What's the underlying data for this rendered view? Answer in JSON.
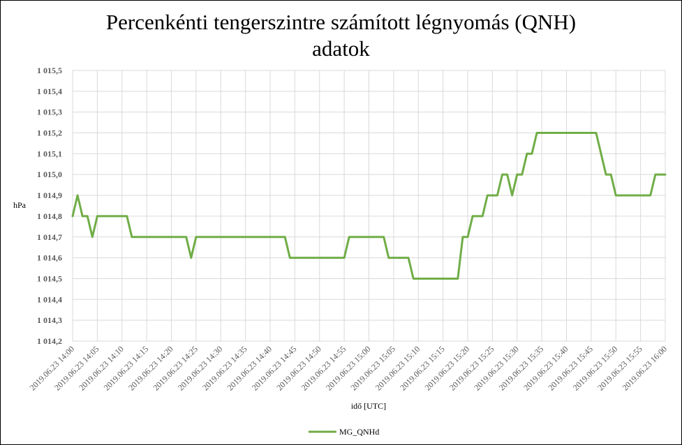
{
  "chart_data": {
    "type": "line",
    "title_lines": [
      "Percenkénti tengerszintre számított légnyomás (QNH)",
      "adatok"
    ],
    "xlabel": "idő [UTC]",
    "ylabel": "hPa",
    "ylim": [
      1014.2,
      1015.5
    ],
    "ystep": 0.1,
    "y_tick_labels": [
      "1 014,2",
      "1 014,3",
      "1 014,4",
      "1 014,5",
      "1 014,6",
      "1 014,7",
      "1 014,8",
      "1 014,9",
      "1 015,0",
      "1 015,1",
      "1 015,2",
      "1 015,3",
      "1 015,4",
      "1 015,5"
    ],
    "x_tick_labels": [
      "2019.06.23 14:00",
      "2019.06.23 14:05",
      "2019.06.23 14:10",
      "2019.06.23 14:15",
      "2019.06.23 14:20",
      "2019.06.23 14:25",
      "2019.06.23 14:30",
      "2019.06.23 14:35",
      "2019.06.23 14:40",
      "2019.06.23 14:45",
      "2019.06.23 14:50",
      "2019.06.23 14:55",
      "2019.06.23 15:00",
      "2019.06.23 15:05",
      "2019.06.23 15:10",
      "2019.06.23 15:15",
      "2019.06.23 15:20",
      "2019.06.23 15:25",
      "2019.06.23 15:30",
      "2019.06.23 15:35",
      "2019.06.23 15:40",
      "2019.06.23 15:45",
      "2019.06.23 15:50",
      "2019.06.23 15:55",
      "2019.06.23 16:00"
    ],
    "x_minutes": [
      0,
      1,
      2,
      3,
      4,
      5,
      6,
      7,
      8,
      9,
      10,
      11,
      12,
      13,
      14,
      15,
      16,
      17,
      18,
      19,
      20,
      21,
      22,
      23,
      24,
      25,
      26,
      27,
      28,
      29,
      30,
      31,
      32,
      33,
      34,
      35,
      36,
      37,
      38,
      39,
      40,
      41,
      42,
      43,
      44,
      45,
      46,
      47,
      48,
      49,
      50,
      51,
      52,
      53,
      54,
      55,
      56,
      57,
      58,
      59,
      60,
      61,
      62,
      63,
      64,
      65,
      66,
      67,
      68,
      69,
      70,
      71,
      72,
      73,
      74,
      75,
      76,
      77,
      78,
      79,
      80,
      81,
      82,
      83,
      84,
      85,
      86,
      87,
      88,
      89,
      90,
      91,
      92,
      93,
      94,
      95,
      96,
      97,
      98,
      99,
      100,
      101,
      102,
      103,
      104,
      105,
      106,
      107,
      108,
      109,
      110,
      111,
      112,
      113,
      114,
      115,
      116,
      117,
      118,
      119,
      120
    ],
    "grid": true,
    "legend_position": "bottom",
    "series": [
      {
        "name": "MG_QNHd",
        "color": "#70AD47",
        "values": [
          1014.8,
          1014.9,
          1014.8,
          1014.8,
          1014.7,
          1014.8,
          1014.8,
          1014.8,
          1014.8,
          1014.8,
          1014.8,
          1014.8,
          1014.7,
          1014.7,
          1014.7,
          1014.7,
          1014.7,
          1014.7,
          1014.7,
          1014.7,
          1014.7,
          1014.7,
          1014.7,
          1014.7,
          1014.6,
          1014.7,
          1014.7,
          1014.7,
          1014.7,
          1014.7,
          1014.7,
          1014.7,
          1014.7,
          1014.7,
          1014.7,
          1014.7,
          1014.7,
          1014.7,
          1014.7,
          1014.7,
          1014.7,
          1014.7,
          1014.7,
          1014.7,
          1014.6,
          1014.6,
          1014.6,
          1014.6,
          1014.6,
          1014.6,
          1014.6,
          1014.6,
          1014.6,
          1014.6,
          1014.6,
          1014.6,
          1014.7,
          1014.7,
          1014.7,
          1014.7,
          1014.7,
          1014.7,
          1014.7,
          1014.7,
          1014.6,
          1014.6,
          1014.6,
          1014.6,
          1014.6,
          1014.5,
          1014.5,
          1014.5,
          1014.5,
          1014.5,
          1014.5,
          1014.5,
          1014.5,
          1014.5,
          1014.5,
          1014.7,
          1014.7,
          1014.8,
          1014.8,
          1014.8,
          1014.9,
          1014.9,
          1014.9,
          1015.0,
          1015.0,
          1014.9,
          1015.0,
          1015.0,
          1015.1,
          1015.1,
          1015.2,
          1015.2,
          1015.2,
          1015.2,
          1015.2,
          1015.2,
          1015.2,
          1015.2,
          1015.2,
          1015.2,
          1015.2,
          1015.2,
          1015.2,
          1015.1,
          1015.0,
          1015.0,
          1014.9,
          1014.9,
          1014.9,
          1014.9,
          1014.9,
          1014.9,
          1014.9,
          1014.9,
          1015.0,
          1015.0,
          1015.0
        ]
      }
    ]
  }
}
